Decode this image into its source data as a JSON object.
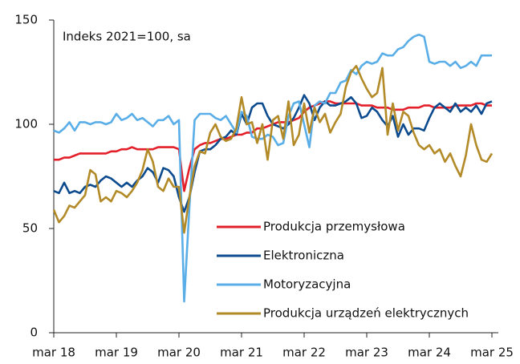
{
  "chart_data": {
    "type": "line",
    "annotation": "Indeks 2021=100, sa",
    "categories": [
      "mar 18",
      null,
      null,
      null,
      null,
      null,
      null,
      null,
      null,
      null,
      null,
      null,
      "mar 19",
      null,
      null,
      null,
      null,
      null,
      null,
      null,
      null,
      null,
      null,
      null,
      "mar 20",
      null,
      null,
      null,
      null,
      null,
      null,
      null,
      null,
      null,
      null,
      null,
      "mar 21",
      null,
      null,
      null,
      null,
      null,
      null,
      null,
      null,
      null,
      null,
      null,
      "mar 22",
      null,
      null,
      null,
      null,
      null,
      null,
      null,
      null,
      null,
      null,
      null,
      "mar 23",
      null,
      null,
      null,
      null,
      null,
      null,
      null,
      null,
      null,
      null,
      null,
      "mar 24",
      null,
      null,
      null,
      null,
      null,
      null,
      null,
      null,
      null,
      null,
      null,
      "mar 25"
    ],
    "series": [
      {
        "name": "Produkcja przemysłowa",
        "color": "#e3202a",
        "values": [
          83,
          83,
          84,
          84,
          85,
          86,
          86,
          86,
          86,
          86,
          86,
          87,
          87,
          88,
          88,
          89,
          88,
          88,
          88,
          88,
          89,
          89,
          89,
          89,
          88,
          68,
          79,
          88,
          90,
          91,
          91,
          92,
          93,
          93,
          94,
          95,
          95,
          96,
          96,
          98,
          98,
          99,
          100,
          101,
          101,
          101,
          102,
          103,
          106,
          108,
          109,
          110,
          111,
          111,
          110,
          110,
          110,
          110,
          110,
          109,
          109,
          109,
          108,
          108,
          108,
          107,
          107,
          107,
          108,
          108,
          108,
          109,
          109,
          108,
          108,
          108,
          108,
          109,
          109,
          109,
          109,
          110,
          110,
          109,
          109
        ]
      },
      {
        "name": "Elektroniczna",
        "color": "#0d4b8f",
        "values": [
          68,
          67,
          72,
          67,
          68,
          67,
          70,
          71,
          70,
          73,
          75,
          74,
          72,
          70,
          72,
          70,
          73,
          75,
          79,
          77,
          72,
          79,
          78,
          75,
          65,
          58,
          65,
          77,
          87,
          88,
          88,
          90,
          93,
          94,
          97,
          95,
          105,
          100,
          108,
          110,
          110,
          104,
          100,
          99,
          98,
          100,
          103,
          108,
          114,
          110,
          102,
          108,
          111,
          109,
          109,
          110,
          111,
          113,
          110,
          103,
          104,
          108,
          106,
          102,
          99,
          104,
          94,
          100,
          95,
          98,
          98,
          97,
          103,
          108,
          110,
          108,
          106,
          110,
          106,
          108,
          106,
          109,
          105,
          110,
          111
        ]
      },
      {
        "name": "Motoryzacyjna",
        "color": "#5aaee8",
        "values": [
          97,
          96,
          98,
          101,
          97,
          101,
          101,
          100,
          101,
          101,
          100,
          101,
          105,
          102,
          103,
          105,
          102,
          103,
          101,
          99,
          102,
          102,
          104,
          100,
          102,
          15,
          60,
          102,
          105,
          105,
          105,
          103,
          102,
          104,
          100,
          96,
          106,
          104,
          94,
          93,
          93,
          95,
          94,
          90,
          91,
          104,
          110,
          111,
          100,
          89,
          109,
          111,
          110,
          115,
          115,
          120,
          121,
          126,
          124,
          128,
          130,
          129,
          130,
          134,
          133,
          133,
          136,
          137,
          140,
          142,
          143,
          142,
          130,
          129,
          130,
          130,
          128,
          130,
          127,
          128,
          130,
          128,
          133,
          133,
          133
        ]
      },
      {
        "name": "Produkcja urządzeń elektrycznych",
        "color": "#b38a28",
        "values": [
          59,
          53,
          56,
          61,
          60,
          63,
          66,
          78,
          76,
          63,
          65,
          63,
          68,
          67,
          65,
          68,
          72,
          78,
          88,
          82,
          70,
          68,
          74,
          70,
          70,
          48,
          65,
          80,
          87,
          86,
          96,
          100,
          94,
          92,
          93,
          98,
          113,
          100,
          101,
          91,
          100,
          83,
          102,
          104,
          93,
          111,
          90,
          95,
          110,
          96,
          108,
          101,
          105,
          96,
          101,
          105,
          118,
          125,
          128,
          122,
          117,
          113,
          115,
          127,
          95,
          110,
          97,
          106,
          104,
          96,
          90,
          88,
          90,
          86,
          88,
          82,
          86,
          80,
          75,
          85,
          100,
          90,
          83,
          82,
          86
        ]
      }
    ],
    "ylim": [
      0,
      150
    ],
    "yticks": [
      0,
      50,
      100,
      150
    ],
    "grid": false,
    "legend": "lower right"
  }
}
